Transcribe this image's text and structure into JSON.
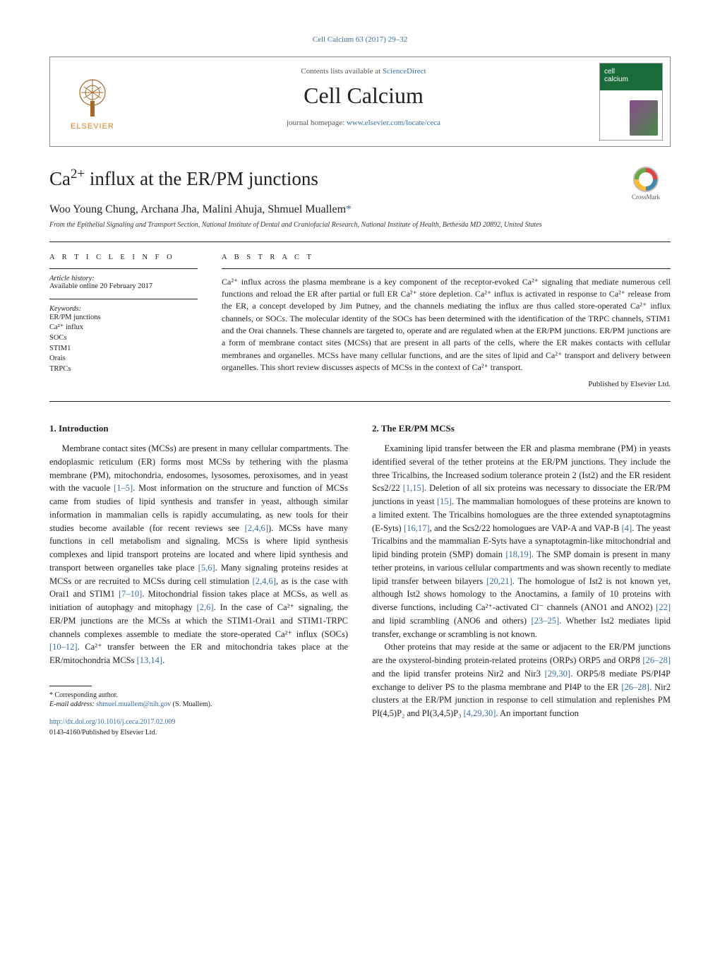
{
  "journal_ref": "Cell Calcium 63 (2017) 29–32",
  "header": {
    "contents_prefix": "Contents lists available at ",
    "contents_link": "ScienceDirect",
    "journal_name": "Cell Calcium",
    "homepage_prefix": "journal homepage: ",
    "homepage_url": "www.elsevier.com/locate/ceca",
    "publisher_label": "ELSEVIER",
    "cover_text": "cell\ncalcium"
  },
  "crossmark_label": "CrossMark",
  "title_plain": "Ca",
  "title_sup": "2+",
  "title_rest": " influx at the ER/PM junctions",
  "authors": "Woo Young Chung, Archana Jha, Malini Ahuja, Shmuel Muallem",
  "corr_marker": "*",
  "affiliation": "From the Epithelial Signaling and Transport Section, National Institute of Dental and Craniofacial Research, National Institute of Health, Bethesda MD 20892, United States",
  "article_info_heading": "A R T I C L E   I N F O",
  "history_label": "Article history:",
  "history_value": "Available online 20 February 2017",
  "keywords_label": "Keywords:",
  "keywords": [
    "ER/PM junctions",
    "Ca²⁺ influx",
    "SOCs",
    "STIM1",
    "Orais",
    "TRPCs"
  ],
  "abstract_heading": "A B S T R A C T",
  "abstract_text": "Ca²⁺ influx across the plasma membrane is a key component of the receptor-evoked Ca²⁺ signaling that mediate numerous cell functions and reload the ER after partial or full ER Ca²⁺ store depletion. Ca²⁺ influx is activated in response to Ca²⁺ release from the ER, a concept developed by Jim Putney, and the channels mediating the influx are thus called store-operated Ca²⁺ influx channels, or SOCs. The molecular identity of the SOCs has been determined with the identification of the TRPC channels, STIM1 and the Orai channels. These channels are targeted to, operate and are regulated when at the ER/PM junctions. ER/PM junctions are a form of membrane contact sites (MCSs) that are present in all parts of the cells, where the ER makes contacts with cellular membranes and organelles. MCSs have many cellular functions, and are the sites of lipid and Ca²⁺ transport and delivery between organelles. This short review discusses aspects of MCSs in the context of Ca²⁺ transport.",
  "publisher_note": "Published by Elsevier Ltd.",
  "sections": {
    "intro_heading": "1.  Introduction",
    "intro_body": "Membrane contact sites (MCSs) are present in many cellular compartments. The endoplasmic reticulum (ER) forms most MCSs by tethering with the plasma membrane (PM), mitochondria, endosomes, lysosomes, peroxisomes, and in yeast with the vacuole [1–5]. Most information on the structure and function of MCSs came from studies of lipid synthesis and transfer in yeast, although similar information in mammalian cells is rapidly accumulating, as new tools for their studies become available (for recent reviews see [2,4,6]). MCSs have many functions in cell metabolism and signaling. MCSs is where lipid synthesis complexes and lipid transport proteins are located and where lipid synthesis and transport between organelles take place [5,6]. Many signaling proteins resides at MCSs or are recruited to MCSs during cell stimulation [2,4,6], as is the case with Orai1 and STIM1 [7–10]. Mitochondrial fission takes place at MCSs, as well as initiation of autophagy and mitophagy [2,6]. In the case of Ca²⁺ signaling, the ER/PM junctions are the MCSs at which the STIM1-Orai1 and STIM1-TRPC channels complexes assemble to mediate the store-operated Ca²⁺ influx (SOCs) [10–12]. Ca²⁺ transfer between the ER and mitochondria takes place at the ER/mitochondria MCSs [13,14].",
    "intro_cites": [
      "[1–5]",
      "[2,4,6]",
      "[5,6]",
      "[2,4,6]",
      "[7–10]",
      "[2,6]",
      "[10–12]",
      "[13,14]"
    ],
    "erpm_heading": "2.  The ER/PM MCSs",
    "erpm_body": "Examining lipid transfer between the ER and plasma membrane (PM) in yeasts identified several of the tether proteins at the ER/PM junctions. They include the three Tricalbins, the Increased sodium tolerance protein 2 (Ist2) and the ER resident Scs2/22 [1,15]. Deletion of all six proteins was necessary to dissociate the ER/PM junctions in yeast [15]. The mammalian homologues of these proteins are known to a limited extent. The Tricalbins homologues are the three extended synaptotagmins (E-Syts) [16,17], and the Scs2/22 homologues are VAP-A and VAP-B [4]. The yeast Tricalbins and the mammalian E-Syts have a synaptotagmin-like mitochondrial and lipid binding protein (SMP) domain [18,19]. The SMP domain is present in many tether proteins, in various cellular compartments and was shown recently to mediate lipid transfer between bilayers [20,21]. The homologue of Ist2 is not known yet, although Ist2 shows homology to the Anoctamins, a family of 10 proteins with diverse functions, including Ca²⁺-activated Cl⁻ channels (ANO1 and ANO2) [22] and lipid scrambling (ANO6 and others) [23–25]. Whether Ist2 mediates lipid transfer, exchange or scrambling is not known.",
    "erpm_cites": [
      "[1,15]",
      "[15]",
      "[16,17]",
      "[4]",
      "[18,19]",
      "[20,21]",
      "[22]",
      "[23–25]"
    ],
    "erpm_p2": "Other proteins that may reside at the same or adjacent to the ER/PM junctions are the oxysterol-binding protein-related proteins (ORPs) ORP5 and ORP8 [26–28] and the lipid transfer proteins Nir2 and Nir3 [29,30]. ORP5/8 mediate PS/PI4P exchange to deliver PS to the plasma membrane and PI4P to the ER [26–28]. Nir2 clusters at the ER/PM junction in response to cell stimulation and replenishes PM PI(4,5)P₂ and PI(3,4,5)P₃ [4,29,30]. An important function",
    "erpm_p2_cites": [
      "[26–28]",
      "[29,30]",
      "[26–28]",
      "[4,29,30]"
    ]
  },
  "footnote": {
    "corr_label": "* Corresponding author.",
    "email_label": "E-mail address: ",
    "email": "shmuel.muallem@nih.gov",
    "email_name": " (S. Muallem)."
  },
  "doi": {
    "url": "http://dx.doi.org/10.1016/j.ceca.2017.02.009",
    "issn_line": "0143-4160/Published by Elsevier Ltd."
  },
  "colors": {
    "link": "#3a6ea5",
    "rule": "#222222",
    "elsevier": "#e67e22",
    "cover_green": "#1a6b3a"
  }
}
